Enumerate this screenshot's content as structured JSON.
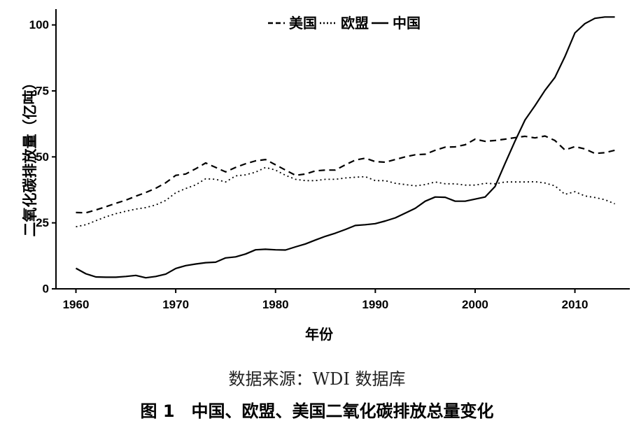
{
  "chart_data": {
    "type": "line",
    "ylabel": "二氧化碳排放量（亿吨）",
    "xlabel": "年份",
    "xlim": [
      1958,
      2015.5
    ],
    "ylim": [
      0,
      106
    ],
    "xticks": [
      1960,
      1970,
      1980,
      1990,
      2000,
      2010
    ],
    "yticks": [
      0,
      25,
      50,
      75,
      100
    ],
    "legend_position": "top-center",
    "grid": false,
    "x": [
      1960,
      1961,
      1962,
      1963,
      1964,
      1965,
      1966,
      1967,
      1968,
      1969,
      1970,
      1971,
      1972,
      1973,
      1974,
      1975,
      1976,
      1977,
      1978,
      1979,
      1980,
      1981,
      1982,
      1983,
      1984,
      1985,
      1986,
      1987,
      1988,
      1989,
      1990,
      1991,
      1992,
      1993,
      1994,
      1995,
      1996,
      1997,
      1998,
      1999,
      2000,
      2001,
      2002,
      2003,
      2004,
      2005,
      2006,
      2007,
      2008,
      2009,
      2010,
      2011,
      2012,
      2013,
      2014
    ],
    "series": [
      {
        "name": "美国",
        "style": "dashed",
        "values": [
          28.9,
          28.8,
          29.9,
          31.1,
          32.4,
          33.6,
          35.1,
          36.5,
          38.1,
          40.2,
          43.0,
          43.5,
          45.5,
          47.7,
          46.0,
          44.3,
          46.0,
          47.4,
          48.5,
          49.0,
          47.0,
          45.0,
          43.0,
          43.5,
          44.7,
          45.0,
          45.0,
          47.0,
          48.8,
          49.5,
          48.2,
          48.0,
          49.0,
          50.0,
          50.8,
          51.0,
          52.5,
          53.7,
          53.8,
          54.6,
          56.7,
          55.9,
          56.2,
          56.7,
          57.3,
          57.8,
          57.2,
          57.9,
          56.2,
          52.6,
          53.9,
          53.0,
          51.3,
          51.6,
          52.5
        ]
      },
      {
        "name": "欧盟",
        "style": "dotted",
        "values": [
          23.5,
          24.3,
          25.8,
          27.3,
          28.5,
          29.4,
          30.2,
          30.8,
          31.8,
          33.5,
          36.4,
          38.0,
          39.4,
          41.7,
          41.5,
          40.5,
          42.8,
          43.2,
          44.2,
          46.0,
          45.0,
          43.0,
          41.5,
          41.0,
          41.0,
          41.5,
          41.5,
          42.0,
          42.3,
          42.5,
          41.0,
          41.0,
          40.0,
          39.5,
          39.0,
          39.5,
          40.5,
          39.8,
          39.8,
          39.3,
          39.3,
          40.0,
          39.8,
          40.5,
          40.5,
          40.5,
          40.6,
          40.1,
          39.0,
          35.8,
          36.8,
          35.2,
          34.6,
          33.8,
          32.2
        ]
      },
      {
        "name": "中国",
        "style": "solid",
        "values": [
          7.8,
          5.7,
          4.5,
          4.4,
          4.4,
          4.7,
          5.1,
          4.2,
          4.7,
          5.6,
          7.7,
          8.8,
          9.4,
          9.9,
          10.1,
          11.7,
          12.1,
          13.2,
          14.8,
          15.0,
          14.8,
          14.7,
          15.9,
          17.0,
          18.5,
          19.9,
          21.1,
          22.5,
          24.0,
          24.3,
          24.7,
          25.7,
          26.9,
          28.7,
          30.5,
          33.2,
          34.8,
          34.7,
          33.2,
          33.2,
          34.0,
          34.8,
          38.8,
          47.5,
          56.0,
          64.0,
          69.4,
          75.2,
          80.1,
          88.0,
          97.0,
          100.5,
          102.5,
          103.0,
          103.0
        ]
      }
    ]
  },
  "source_note": "数据来源：WDI 数据库",
  "figure_caption": "图 1　中国、欧盟、美国二氧化碳排放总量变化"
}
